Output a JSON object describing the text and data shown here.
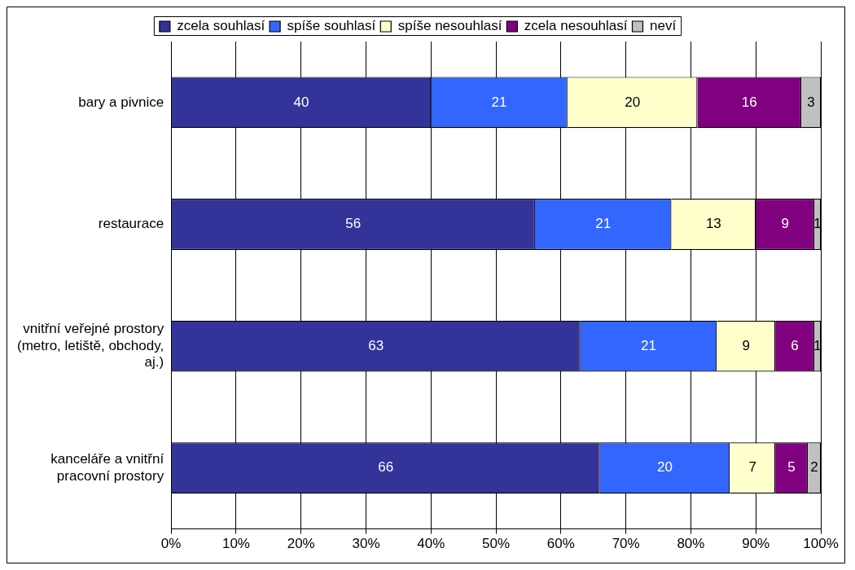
{
  "chart_data": {
    "type": "bar",
    "orientation": "horizontal",
    "stacked": true,
    "categories": [
      "bary a pivnice",
      "restaurace",
      "vnitřní veřejné prostory (metro, letiště, obchody, aj.)",
      "kanceláře a vnitřní pracovní prostory"
    ],
    "series": [
      {
        "name": "zcela souhlasí",
        "color": "#333399",
        "values": [
          40,
          56,
          63,
          66
        ]
      },
      {
        "name": "spíše souhlasí",
        "color": "#3366ff",
        "values": [
          21,
          21,
          21,
          20
        ]
      },
      {
        "name": "spíše nesouhlasí",
        "color": "#ffffcc",
        "values": [
          20,
          13,
          9,
          7
        ]
      },
      {
        "name": "zcela nesouhlasí",
        "color": "#800080",
        "values": [
          16,
          9,
          6,
          5
        ]
      },
      {
        "name": "neví",
        "color": "#c0c0c0",
        "values": [
          3,
          1,
          1,
          2
        ]
      }
    ],
    "xlim": [
      0,
      100
    ],
    "xticks": [
      {
        "value": 0,
        "label": "0%"
      },
      {
        "value": 10,
        "label": "10%"
      },
      {
        "value": 20,
        "label": "20%"
      },
      {
        "value": 30,
        "label": "30%"
      },
      {
        "value": 40,
        "label": "40%"
      },
      {
        "value": 50,
        "label": "50%"
      },
      {
        "value": 60,
        "label": "60%"
      },
      {
        "value": 70,
        "label": "70%"
      },
      {
        "value": 80,
        "label": "80%"
      },
      {
        "value": 90,
        "label": "90%"
      },
      {
        "value": 100,
        "label": "100%"
      }
    ],
    "grid": "x",
    "legend": "top",
    "data_labels": true
  }
}
